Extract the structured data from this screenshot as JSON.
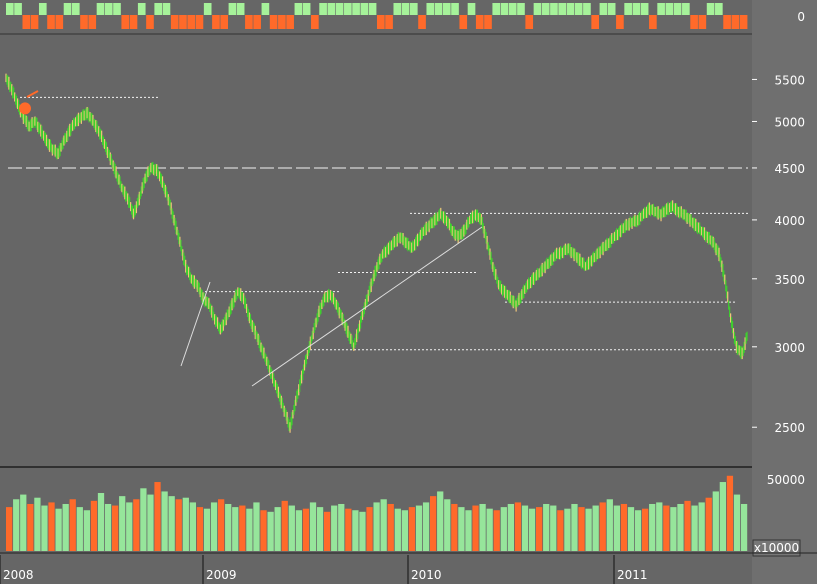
{
  "colors": {
    "background": "#666666",
    "axis_panel": "#6f6f6f",
    "up": "#3fcf2f",
    "down": "#f0c67a",
    "signal_up": "#a6f29a",
    "signal_down": "#ff6a2a",
    "volume_up": "#96e59b",
    "volume_down": "#ff6a2a",
    "text": "#ffffff"
  },
  "chart_data": [
    {
      "type": "line",
      "panel": "signal",
      "y_tick_labels": [
        "0"
      ],
      "series": [
        {
          "values": [
            1,
            1,
            0,
            0,
            1,
            0,
            0,
            1,
            1,
            0,
            0,
            1,
            1,
            1,
            0,
            0,
            1,
            0,
            1,
            1,
            0,
            0,
            0,
            0,
            1,
            0,
            0,
            1,
            1,
            0,
            0,
            1,
            0,
            0,
            0,
            1,
            1,
            0,
            1,
            1,
            1,
            1,
            1,
            1,
            1,
            0,
            0,
            1,
            1,
            1,
            0,
            1,
            1,
            1,
            1,
            0,
            1,
            0,
            0,
            1,
            1,
            1,
            1,
            0,
            1,
            1,
            1,
            1,
            1,
            1,
            1,
            0,
            1,
            1,
            0,
            1,
            1,
            1,
            0,
            1,
            1,
            1,
            1,
            0,
            0,
            1,
            1,
            0,
            0,
            0
          ]
        }
      ]
    },
    {
      "type": "line",
      "panel": "price",
      "y_scale": "log",
      "ylim": [
        2300,
        5800
      ],
      "y_ticks": [
        2500,
        3000,
        3500,
        4000,
        4500,
        5000,
        5500
      ],
      "x_tick_labels": [
        "2008",
        "2009",
        "2010",
        "2011"
      ],
      "series": [
        {
          "values": [
            5520,
            5380,
            5200,
            5050,
            4950,
            5000,
            4900,
            4780,
            4700,
            4650,
            4780,
            4900,
            5000,
            5050,
            5100,
            5000,
            4900,
            4750,
            4600,
            4450,
            4300,
            4200,
            4050,
            4200,
            4400,
            4500,
            4480,
            4350,
            4200,
            4000,
            3800,
            3600,
            3500,
            3450,
            3350,
            3300,
            3200,
            3120,
            3200,
            3300,
            3400,
            3350,
            3200,
            3100,
            3000,
            2900,
            2800,
            2700,
            2600,
            2500,
            2650,
            2800,
            2950,
            3100,
            3250,
            3350,
            3380,
            3300,
            3200,
            3100,
            3000,
            3150,
            3300,
            3450,
            3600,
            3700,
            3750,
            3800,
            3850,
            3800,
            3750,
            3820,
            3900,
            3950,
            4000,
            4050,
            4000,
            3900,
            3850,
            3900,
            4000,
            4050,
            4000,
            3800,
            3600,
            3450,
            3400,
            3350,
            3300,
            3380,
            3450,
            3500,
            3550,
            3600,
            3650,
            3700,
            3720,
            3750,
            3700,
            3650,
            3600,
            3650,
            3700,
            3750,
            3800,
            3850,
            3900,
            3950,
            3980,
            4000,
            4050,
            4100,
            4080,
            4050,
            4100,
            4120,
            4080,
            4050,
            4000,
            3950,
            3900,
            3850,
            3800,
            3700,
            3500,
            3200,
            3000,
            2950,
            3100
          ]
        }
      ],
      "annotations": {
        "dashed_levels": [
          4500
        ],
        "dotted_levels": [
          5280,
          4060,
          3400,
          3550,
          3320,
          2980
        ],
        "sell_marker_value": 5150
      }
    },
    {
      "type": "bar",
      "panel": "volume",
      "y_tick_labels": [
        "50000"
      ],
      "unit_label": "x10000",
      "series": [
        {
          "values": [
            28,
            33,
            36,
            30,
            34,
            29,
            31,
            27,
            30,
            33,
            28,
            26,
            32,
            37,
            30,
            29,
            35,
            31,
            33,
            40,
            36,
            44,
            38,
            35,
            33,
            34,
            31,
            28,
            27,
            31,
            33,
            30,
            28,
            29,
            27,
            31,
            26,
            25,
            28,
            32,
            29,
            26,
            27,
            31,
            28,
            25,
            29,
            30,
            27,
            26,
            25,
            28,
            31,
            33,
            30,
            27,
            26,
            28,
            29,
            31,
            35,
            38,
            33,
            30,
            28,
            26,
            29,
            30,
            27,
            26,
            28,
            30,
            31,
            29,
            27,
            28,
            30,
            29,
            26,
            27,
            30,
            28,
            27,
            29,
            31,
            33,
            29,
            30,
            28,
            26,
            27,
            30,
            31,
            29,
            28,
            30,
            32,
            29,
            31,
            34,
            38,
            44,
            48,
            36,
            30
          ]
        }
      ]
    }
  ]
}
